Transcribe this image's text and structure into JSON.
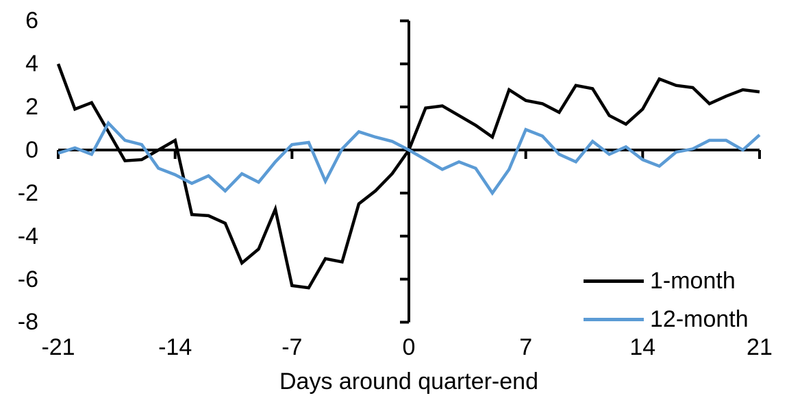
{
  "chart_data": {
    "type": "line",
    "title": "",
    "xlabel": "Days around quarter-end",
    "ylabel": "",
    "xlim": [
      -21,
      21
    ],
    "ylim": [
      -8,
      6
    ],
    "x_ticks": [
      -21,
      -14,
      -7,
      0,
      7,
      14,
      21
    ],
    "y_ticks": [
      6,
      4,
      2,
      0,
      -2,
      -4,
      -6,
      -8
    ],
    "grid": "off",
    "legend_position": "inside-bottom-right",
    "axis_color": "#000000",
    "x": [
      -21,
      -20,
      -19,
      -18,
      -17,
      -16,
      -15,
      -14,
      -13,
      -12,
      -11,
      -10,
      -9,
      -8,
      -7,
      -6,
      -5,
      -4,
      -3,
      -2,
      -1,
      0,
      1,
      2,
      3,
      4,
      5,
      6,
      7,
      8,
      9,
      10,
      11,
      12,
      13,
      14,
      15,
      16,
      17,
      18,
      19,
      20,
      21
    ],
    "series": [
      {
        "name": "1-month",
        "color": "#000000",
        "values": [
          4.0,
          1.9,
          2.2,
          0.85,
          -0.5,
          -0.45,
          0.0,
          0.45,
          -3.0,
          -3.05,
          -3.4,
          -5.25,
          -4.6,
          -2.75,
          -6.3,
          -6.4,
          -5.05,
          -5.2,
          -2.5,
          -1.9,
          -1.1,
          0.0,
          1.95,
          2.05,
          1.6,
          1.15,
          0.6,
          2.8,
          2.3,
          2.15,
          1.75,
          3.0,
          2.85,
          1.6,
          1.2,
          1.9,
          3.3,
          3.0,
          2.9,
          2.15,
          2.5,
          2.8,
          2.7
        ]
      },
      {
        "name": "12-month",
        "color": "#5B9BD5",
        "values": [
          -0.15,
          0.1,
          -0.2,
          1.25,
          0.45,
          0.25,
          -0.85,
          -1.15,
          -1.55,
          -1.2,
          -1.9,
          -1.1,
          -1.5,
          -0.55,
          0.25,
          0.35,
          -1.45,
          0.05,
          0.85,
          0.6,
          0.4,
          0.0,
          -0.45,
          -0.9,
          -0.55,
          -0.85,
          -2.0,
          -0.9,
          0.95,
          0.65,
          -0.2,
          -0.55,
          0.4,
          -0.2,
          0.15,
          -0.45,
          -0.75,
          -0.1,
          0.05,
          0.45,
          0.45,
          0.0,
          0.7
        ]
      }
    ]
  }
}
